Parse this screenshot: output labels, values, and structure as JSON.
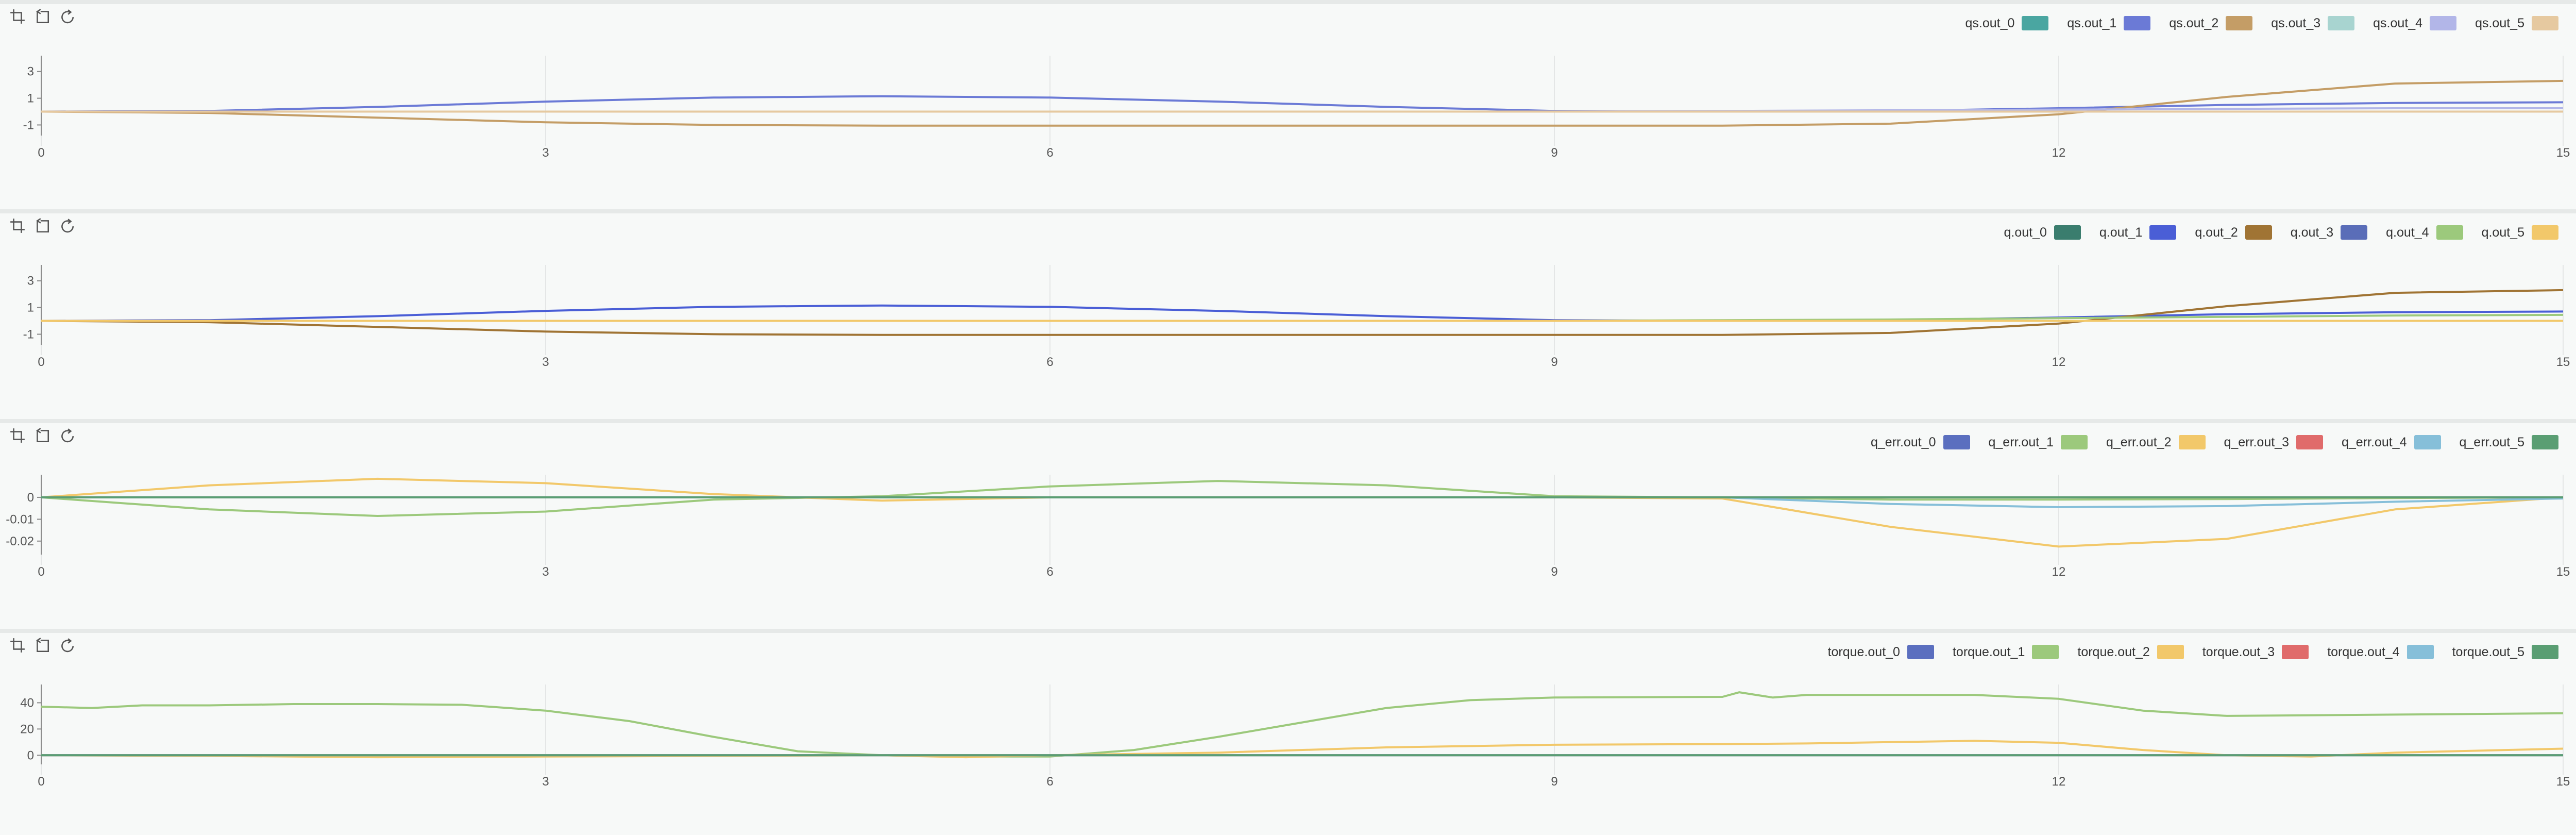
{
  "toolbar": {
    "icons": [
      "crop-icon",
      "undo-icon",
      "refresh-icon"
    ]
  },
  "chart_data": [
    {
      "type": "line",
      "title": "",
      "xlabel": "",
      "ylabel": "",
      "xlim": [
        0,
        15
      ],
      "ylim": [
        -1.6,
        3.8
      ],
      "xticks": [
        "0",
        "3",
        "6",
        "9",
        "12",
        "15"
      ],
      "yticks": [
        "3",
        "1",
        "-1"
      ],
      "ytick_values": [
        3,
        1,
        -1
      ],
      "grid": "vertical",
      "legend_position": "top-right",
      "series": [
        {
          "name": "qs.out_0",
          "color": "#4aa6a1",
          "points": [
            [
              0,
              0
            ],
            [
              15,
              0
            ]
          ]
        },
        {
          "name": "qs.out_1",
          "color": "#6b7ad6",
          "points": [
            [
              0,
              0
            ],
            [
              1,
              0.05
            ],
            [
              2,
              0.35
            ],
            [
              3,
              0.75
            ],
            [
              4,
              1.05
            ],
            [
              5,
              1.15
            ],
            [
              6,
              1.05
            ],
            [
              7,
              0.75
            ],
            [
              8,
              0.35
            ],
            [
              9,
              0.05
            ],
            [
              10,
              0
            ],
            [
              11,
              0.05
            ],
            [
              12,
              0.25
            ],
            [
              13,
              0.5
            ],
            [
              14,
              0.65
            ],
            [
              15,
              0.7
            ]
          ]
        },
        {
          "name": "qs.out_2",
          "color": "#c49d66",
          "points": [
            [
              0,
              0
            ],
            [
              1,
              -0.1
            ],
            [
              2,
              -0.45
            ],
            [
              3,
              -0.8
            ],
            [
              4,
              -1.0
            ],
            [
              5,
              -1.05
            ],
            [
              6,
              -1.05
            ],
            [
              7,
              -1.05
            ],
            [
              8,
              -1.05
            ],
            [
              9,
              -1.05
            ],
            [
              10,
              -1.05
            ],
            [
              11,
              -0.9
            ],
            [
              12,
              -0.2
            ],
            [
              13,
              1.1
            ],
            [
              14,
              2.1
            ],
            [
              15,
              2.3
            ]
          ]
        },
        {
          "name": "qs.out_3",
          "color": "#a8d4d0",
          "points": [
            [
              0,
              0
            ],
            [
              15,
              0
            ]
          ]
        },
        {
          "name": "qs.out_4",
          "color": "#b2b6e8",
          "points": [
            [
              0,
              0
            ],
            [
              9,
              0
            ],
            [
              10,
              0.05
            ],
            [
              11,
              0.1
            ],
            [
              12,
              0.15
            ],
            [
              13,
              0.2
            ],
            [
              14,
              0.25
            ],
            [
              15,
              0.25
            ]
          ]
        },
        {
          "name": "qs.out_5",
          "color": "#e6c9a0",
          "points": [
            [
              0,
              0
            ],
            [
              15,
              0
            ]
          ]
        }
      ]
    },
    {
      "type": "line",
      "title": "",
      "xlabel": "",
      "ylabel": "",
      "xlim": [
        0,
        15
      ],
      "ylim": [
        -1.6,
        3.8
      ],
      "xticks": [
        "0",
        "3",
        "6",
        "9",
        "12",
        "15"
      ],
      "yticks": [
        "3",
        "1",
        "-1"
      ],
      "ytick_values": [
        3,
        1,
        -1
      ],
      "grid": "vertical",
      "legend_position": "top-right",
      "series": [
        {
          "name": "q.out_0",
          "color": "#3a7d6e",
          "points": [
            [
              0,
              0
            ],
            [
              15,
              0
            ]
          ]
        },
        {
          "name": "q.out_1",
          "color": "#4a5ed6",
          "points": [
            [
              0,
              0
            ],
            [
              1,
              0.05
            ],
            [
              2,
              0.35
            ],
            [
              3,
              0.75
            ],
            [
              4,
              1.05
            ],
            [
              5,
              1.15
            ],
            [
              6,
              1.05
            ],
            [
              7,
              0.75
            ],
            [
              8,
              0.35
            ],
            [
              9,
              0.05
            ],
            [
              10,
              0
            ],
            [
              11,
              0.05
            ],
            [
              12,
              0.25
            ],
            [
              13,
              0.5
            ],
            [
              14,
              0.65
            ],
            [
              15,
              0.7
            ]
          ]
        },
        {
          "name": "q.out_2",
          "color": "#a07434",
          "points": [
            [
              0,
              0
            ],
            [
              1,
              -0.1
            ],
            [
              2,
              -0.45
            ],
            [
              3,
              -0.8
            ],
            [
              4,
              -1.0
            ],
            [
              5,
              -1.05
            ],
            [
              6,
              -1.05
            ],
            [
              7,
              -1.05
            ],
            [
              8,
              -1.05
            ],
            [
              9,
              -1.05
            ],
            [
              10,
              -1.05
            ],
            [
              11,
              -0.9
            ],
            [
              12,
              -0.2
            ],
            [
              13,
              1.1
            ],
            [
              14,
              2.1
            ],
            [
              15,
              2.3
            ]
          ]
        },
        {
          "name": "q.out_3",
          "color": "#5a6db8",
          "points": [
            [
              0,
              0
            ],
            [
              15,
              0
            ]
          ]
        },
        {
          "name": "q.out_4",
          "color": "#9cc97c",
          "points": [
            [
              0,
              0
            ],
            [
              9,
              0
            ],
            [
              10,
              0.05
            ],
            [
              11,
              0.1
            ],
            [
              12,
              0.2
            ],
            [
              13,
              0.3
            ],
            [
              14,
              0.4
            ],
            [
              15,
              0.45
            ]
          ]
        },
        {
          "name": "q.out_5",
          "color": "#f2c86a",
          "points": [
            [
              0,
              0
            ],
            [
              15,
              0
            ]
          ]
        }
      ]
    },
    {
      "type": "line",
      "title": "",
      "xlabel": "",
      "ylabel": "",
      "xlim": [
        0,
        15
      ],
      "ylim": [
        -0.025,
        0.008
      ],
      "xticks": [
        "0",
        "3",
        "6",
        "9",
        "12",
        "15"
      ],
      "yticks": [
        "0",
        "-0.01",
        "-0.02"
      ],
      "ytick_values": [
        0,
        -0.01,
        -0.02
      ],
      "grid": "vertical",
      "legend_position": "top-right",
      "series": [
        {
          "name": "q_err.out_0",
          "color": "#5b6fbf",
          "points": [
            [
              0,
              0
            ],
            [
              15,
              0
            ]
          ]
        },
        {
          "name": "q_err.out_1",
          "color": "#9cc97c",
          "points": [
            [
              0,
              0
            ],
            [
              1,
              -0.0055
            ],
            [
              2,
              -0.0085
            ],
            [
              3,
              -0.0065
            ],
            [
              4,
              -0.001
            ],
            [
              5,
              0.0005
            ],
            [
              6,
              0.005
            ],
            [
              7,
              0.0075
            ],
            [
              8,
              0.0055
            ],
            [
              9,
              0.0005
            ],
            [
              10,
              0
            ],
            [
              11,
              -0.001
            ],
            [
              12,
              -0.001
            ],
            [
              13,
              -0.0008
            ],
            [
              14,
              -0.0003
            ],
            [
              15,
              0
            ]
          ]
        },
        {
          "name": "q_err.out_2",
          "color": "#f2c86a",
          "points": [
            [
              0,
              0
            ],
            [
              1,
              0.0055
            ],
            [
              2,
              0.0085
            ],
            [
              3,
              0.0065
            ],
            [
              4,
              0.0015
            ],
            [
              5,
              -0.0015
            ],
            [
              6,
              0
            ],
            [
              7,
              0
            ],
            [
              8,
              0
            ],
            [
              9,
              0
            ],
            [
              10,
              -0.0005
            ],
            [
              11,
              -0.0135
            ],
            [
              12,
              -0.0225
            ],
            [
              13,
              -0.019
            ],
            [
              14,
              -0.0055
            ],
            [
              15,
              0
            ]
          ]
        },
        {
          "name": "q_err.out_3",
          "color": "#e06b6b",
          "points": [
            [
              0,
              0
            ],
            [
              15,
              0
            ]
          ]
        },
        {
          "name": "q_err.out_4",
          "color": "#86bfd9",
          "points": [
            [
              0,
              0
            ],
            [
              10,
              0
            ],
            [
              11,
              -0.003
            ],
            [
              12,
              -0.0045
            ],
            [
              13,
              -0.004
            ],
            [
              14,
              -0.002
            ],
            [
              15,
              -0.0005
            ]
          ]
        },
        {
          "name": "q_err.out_5",
          "color": "#5a9e73",
          "points": [
            [
              0,
              0
            ],
            [
              15,
              0
            ]
          ]
        }
      ]
    },
    {
      "type": "line",
      "title": "",
      "xlabel": "",
      "ylabel": "",
      "xlim": [
        0,
        15
      ],
      "ylim": [
        -5,
        50
      ],
      "xticks": [
        "0",
        "3",
        "6",
        "9",
        "12",
        "15"
      ],
      "yticks": [
        "40",
        "20",
        "0"
      ],
      "ytick_values": [
        40,
        20,
        0
      ],
      "grid": "vertical",
      "legend_position": "top-right",
      "series": [
        {
          "name": "torque.out_0",
          "color": "#5b6fbf",
          "points": [
            [
              0,
              0
            ],
            [
              15,
              0
            ]
          ]
        },
        {
          "name": "torque.out_1",
          "color": "#9cc97c",
          "points": [
            [
              0,
              37
            ],
            [
              0.3,
              36
            ],
            [
              0.6,
              38
            ],
            [
              1,
              38
            ],
            [
              1.5,
              39
            ],
            [
              2,
              39
            ],
            [
              2.5,
              38.5
            ],
            [
              3,
              34
            ],
            [
              3.5,
              26
            ],
            [
              4,
              14
            ],
            [
              4.5,
              3
            ],
            [
              5,
              0
            ],
            [
              5.5,
              -1
            ],
            [
              6,
              -1
            ],
            [
              6.5,
              4
            ],
            [
              7,
              14
            ],
            [
              7.5,
              25
            ],
            [
              8,
              36
            ],
            [
              8.5,
              42
            ],
            [
              9,
              44
            ],
            [
              10,
              44.5
            ],
            [
              10.1,
              48
            ],
            [
              10.3,
              44
            ],
            [
              10.5,
              46
            ],
            [
              11,
              46
            ],
            [
              11.5,
              46
            ],
            [
              12,
              43
            ],
            [
              12.5,
              34
            ],
            [
              13,
              30
            ],
            [
              14,
              31
            ],
            [
              15,
              32
            ]
          ]
        },
        {
          "name": "torque.out_2",
          "color": "#f2c86a",
          "points": [
            [
              0,
              0
            ],
            [
              1,
              -0.5
            ],
            [
              2,
              -1.5
            ],
            [
              3,
              -1
            ],
            [
              4,
              -0.5
            ],
            [
              5,
              0
            ],
            [
              5.5,
              -1.5
            ],
            [
              6,
              0
            ],
            [
              7,
              2
            ],
            [
              8,
              6
            ],
            [
              9,
              8
            ],
            [
              10,
              8.5
            ],
            [
              10.5,
              9
            ],
            [
              11,
              10
            ],
            [
              11.5,
              11
            ],
            [
              12,
              9.5
            ],
            [
              12.5,
              4
            ],
            [
              13,
              0
            ],
            [
              13.5,
              -1
            ],
            [
              14,
              2
            ],
            [
              15,
              5
            ]
          ]
        },
        {
          "name": "torque.out_3",
          "color": "#e06b6b",
          "points": [
            [
              0,
              0
            ],
            [
              15,
              0
            ]
          ]
        },
        {
          "name": "torque.out_4",
          "color": "#86bfd9",
          "points": [
            [
              0,
              0
            ],
            [
              15,
              0
            ]
          ]
        },
        {
          "name": "torque.out_5",
          "color": "#5a9e73",
          "points": [
            [
              0,
              0
            ],
            [
              15,
              0
            ]
          ]
        }
      ]
    }
  ]
}
